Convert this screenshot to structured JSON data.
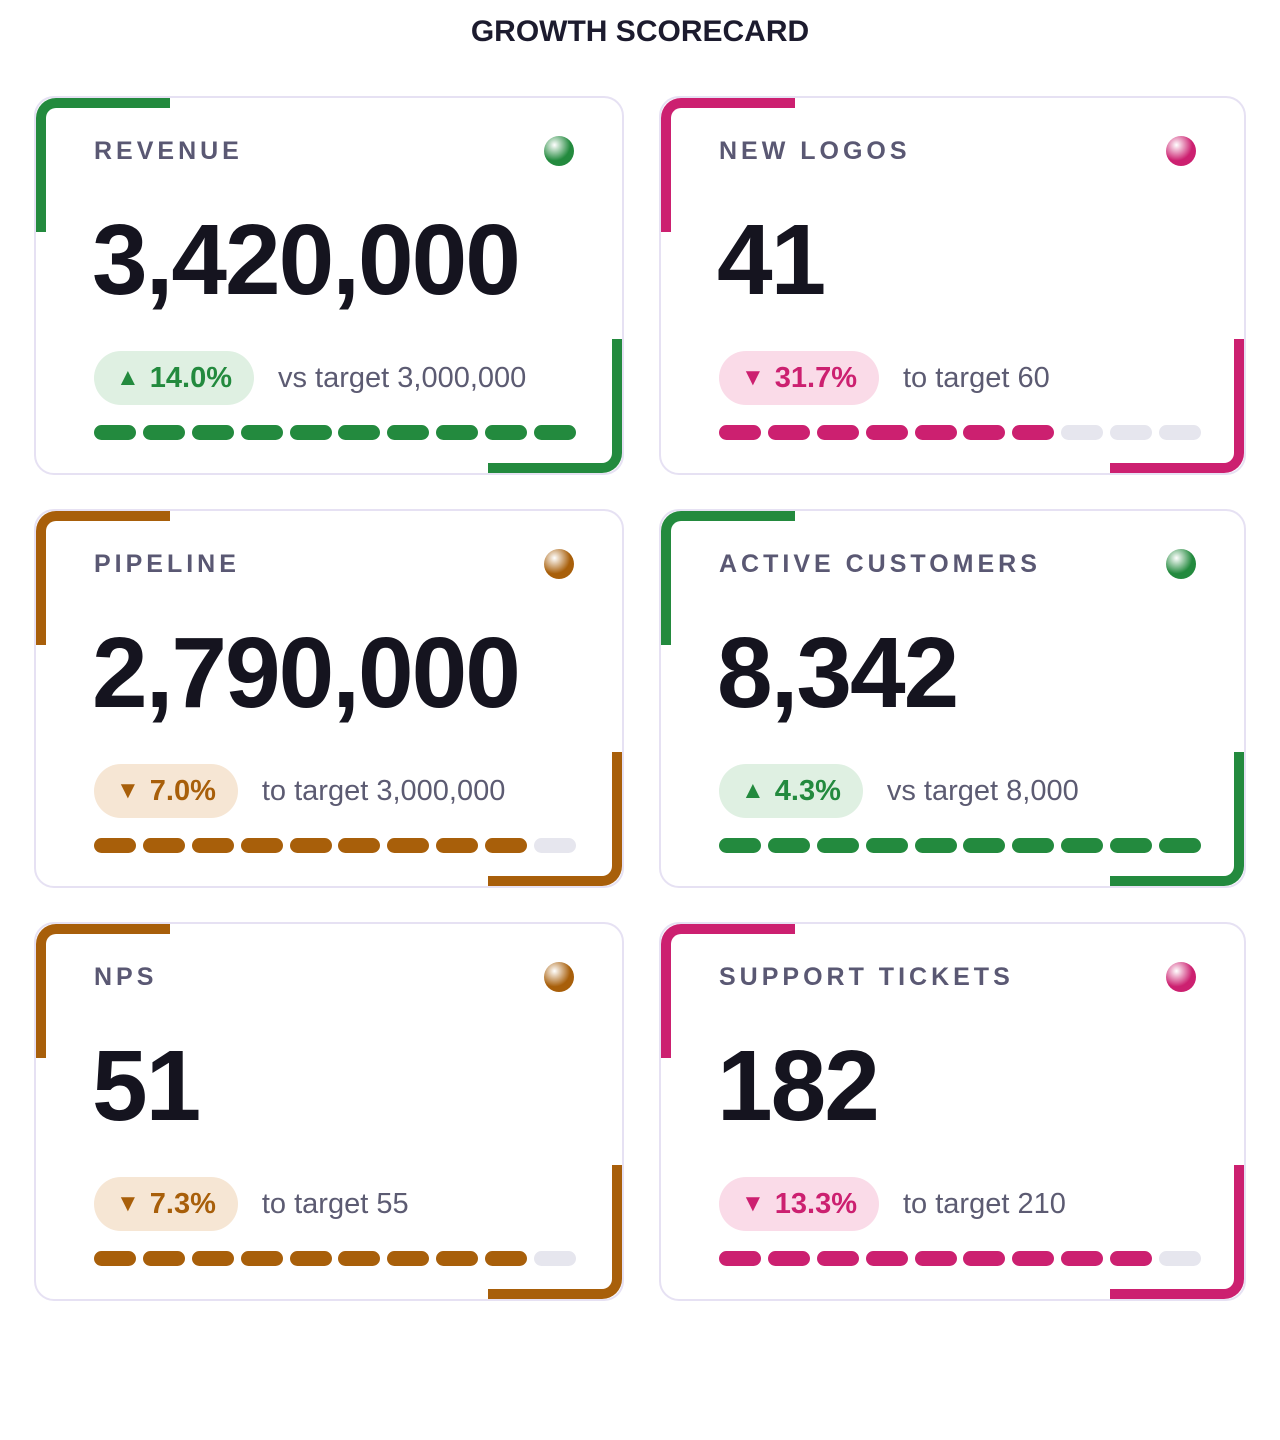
{
  "page_title": "GROWTH SCORECARD",
  "colors": {
    "green": "#238a3e",
    "green_bg": "#dff0e2",
    "magenta": "#cc2070",
    "magenta_bg": "#fadbe8",
    "amber": "#a85f0a",
    "amber_bg": "#f6e6d4",
    "empty_segment": "#e6e6ee"
  },
  "cards": [
    {
      "label": "REVENUE",
      "value": "3,420,000",
      "status": "green",
      "direction": "up",
      "arrow": "▲",
      "delta": "14.0%",
      "target_text": "vs target 3,000,000",
      "progress_filled": 10,
      "progress_total": 10
    },
    {
      "label": "NEW LOGOS",
      "value": "41",
      "status": "magenta",
      "direction": "down",
      "arrow": "▼",
      "delta": "31.7%",
      "target_text": "to target 60",
      "progress_filled": 7,
      "progress_total": 10
    },
    {
      "label": "PIPELINE",
      "value": "2,790,000",
      "status": "amber",
      "direction": "down",
      "arrow": "▼",
      "delta": "7.0%",
      "target_text": "to target 3,000,000",
      "progress_filled": 9,
      "progress_total": 10
    },
    {
      "label": "ACTIVE CUSTOMERS",
      "value": "8,342",
      "status": "green",
      "direction": "up",
      "arrow": "▲",
      "delta": "4.3%",
      "target_text": "vs target 8,000",
      "progress_filled": 10,
      "progress_total": 10
    },
    {
      "label": "NPS",
      "value": "51",
      "status": "amber",
      "direction": "down",
      "arrow": "▼",
      "delta": "7.3%",
      "target_text": "to target 55",
      "progress_filled": 9,
      "progress_total": 10
    },
    {
      "label": "SUPPORT TICKETS",
      "value": "182",
      "status": "magenta",
      "direction": "down",
      "arrow": "▼",
      "delta": "13.3%",
      "target_text": "to target 210",
      "progress_filled": 9,
      "progress_total": 10
    }
  ]
}
